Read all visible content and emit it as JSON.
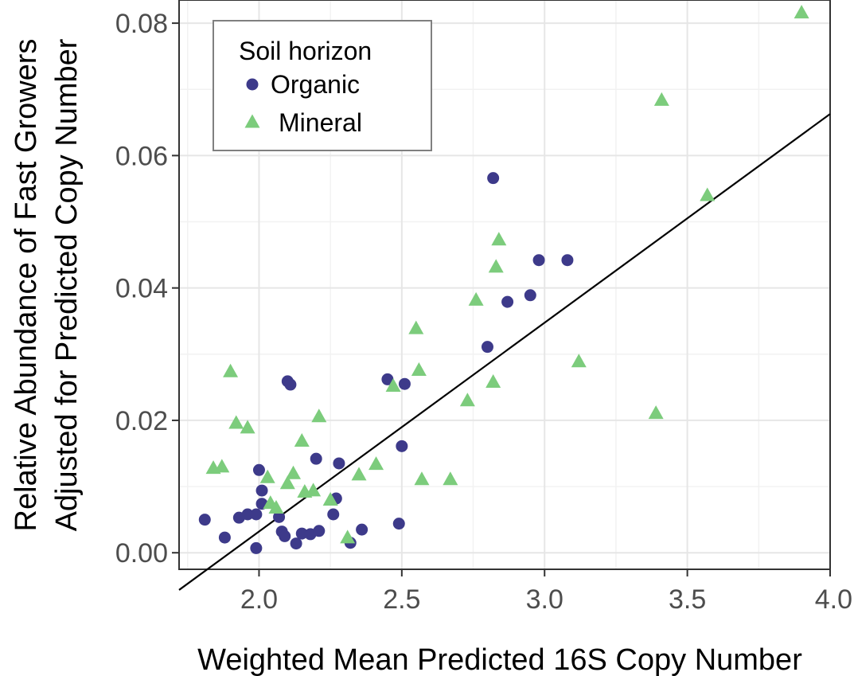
{
  "chart_data": {
    "type": "scatter",
    "xlabel": "Weighted Mean Predicted 16S Copy Number",
    "ylabel_lines": [
      "Relative Abundance of Fast Growers",
      "Adjusted for Predicted Copy Number"
    ],
    "xlim": [
      1.72,
      4.0
    ],
    "ylim": [
      -0.0025,
      0.0835
    ],
    "x_ticks": [
      2.0,
      2.5,
      3.0,
      3.5,
      4.0
    ],
    "x_tick_labels": [
      "2.0",
      "2.5",
      "3.0",
      "3.5",
      "4.0"
    ],
    "y_ticks": [
      0.0,
      0.02,
      0.04,
      0.06,
      0.08
    ],
    "y_tick_labels": [
      "0.00",
      "0.02",
      "0.04",
      "0.06",
      "0.08"
    ],
    "grid": true,
    "legend": {
      "title": "Soil horizon",
      "placement": "top-left"
    },
    "fit_line": {
      "slope": 0.03154,
      "intercept": -0.05987
    },
    "series": [
      {
        "name": "Organic",
        "marker": "circle",
        "color": "#3d3a8a",
        "x": [
          1.81,
          1.88,
          1.93,
          1.96,
          1.99,
          1.99,
          2.0,
          2.01,
          2.01,
          2.07,
          2.08,
          2.09,
          2.1,
          2.11,
          2.13,
          2.15,
          2.18,
          2.2,
          2.21,
          2.26,
          2.27,
          2.28,
          2.32,
          2.36,
          2.45,
          2.49,
          2.5,
          2.51,
          2.8,
          2.82,
          2.87,
          2.95,
          2.98,
          3.08
        ],
        "y": [
          0.005,
          0.0023,
          0.0053,
          0.0058,
          0.0058,
          0.0007,
          0.0125,
          0.0094,
          0.0074,
          0.0054,
          0.0032,
          0.0025,
          0.0259,
          0.0254,
          0.0014,
          0.0029,
          0.0028,
          0.0142,
          0.0033,
          0.0058,
          0.0082,
          0.0135,
          0.0015,
          0.0035,
          0.0262,
          0.0044,
          0.0161,
          0.0255,
          0.0311,
          0.0566,
          0.0379,
          0.0389,
          0.0442,
          0.0442
        ]
      },
      {
        "name": "Mineral",
        "marker": "triangle",
        "color": "#7ccc7c",
        "x": [
          1.84,
          1.87,
          1.9,
          1.92,
          1.96,
          2.03,
          2.04,
          2.06,
          2.1,
          2.12,
          2.15,
          2.16,
          2.19,
          2.21,
          2.25,
          2.31,
          2.35,
          2.41,
          2.47,
          2.55,
          2.56,
          2.57,
          2.67,
          2.73,
          2.76,
          2.82,
          2.83,
          2.84,
          3.12,
          3.39,
          3.41,
          3.57,
          3.9
        ],
        "y": [
          0.0127,
          0.0129,
          0.0273,
          0.0195,
          0.0188,
          0.0113,
          0.0074,
          0.0067,
          0.0104,
          0.0119,
          0.0168,
          0.0091,
          0.0093,
          0.0205,
          0.0079,
          0.0022,
          0.0117,
          0.0133,
          0.0251,
          0.0338,
          0.0275,
          0.011,
          0.011,
          0.0229,
          0.0381,
          0.0257,
          0.0431,
          0.0472,
          0.0288,
          0.021,
          0.0683,
          0.0539,
          0.0815
        ]
      }
    ]
  }
}
